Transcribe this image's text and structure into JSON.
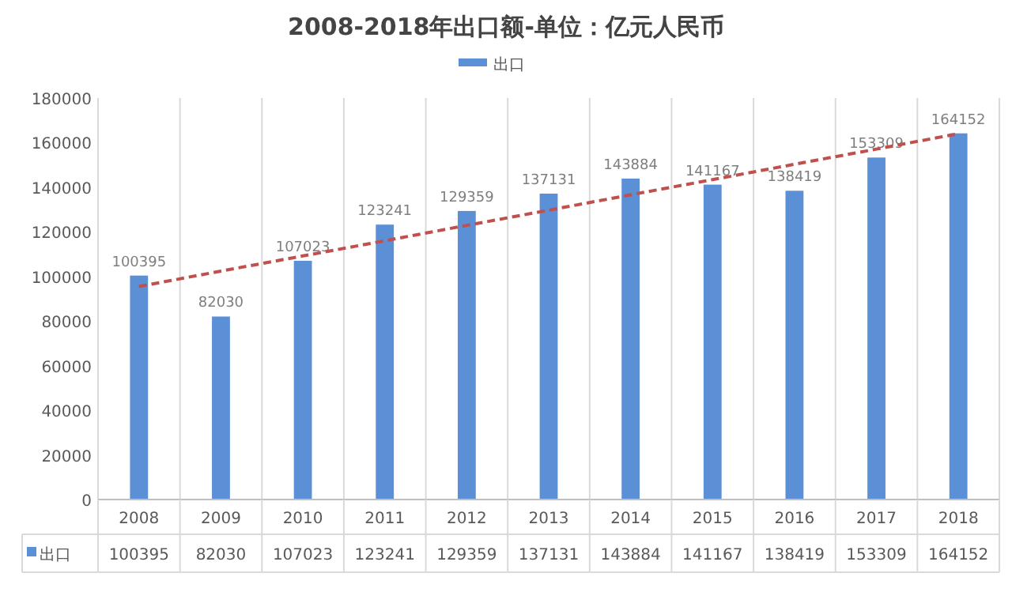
{
  "chart_data": {
    "type": "bar",
    "title": "2008-2018年出口额-单位：亿元人民币",
    "categories": [
      "2008",
      "2009",
      "2010",
      "2011",
      "2012",
      "2013",
      "2014",
      "2015",
      "2016",
      "2017",
      "2018"
    ],
    "series": [
      {
        "name": "出口",
        "color": "#5b8fd6",
        "values": [
          100395,
          82030,
          107023,
          123241,
          129359,
          137131,
          143884,
          141167,
          138419,
          153309,
          164152
        ],
        "value_labels": [
          "100395",
          "82030",
          "107023",
          "123241",
          "129359",
          "137131",
          "143884",
          "141167",
          "138419",
          "153309",
          "164152"
        ]
      },
      {
        "type": "line",
        "color": "#c0504d",
        "line_style": "dashed",
        "values": [
          95500,
          102400,
          109200,
          116000,
          122900,
          129700,
          136600,
          143400,
          150300,
          157100,
          164000
        ]
      }
    ],
    "ylim": [
      0,
      180000
    ],
    "yticks": [
      0,
      20000,
      40000,
      60000,
      80000,
      100000,
      120000,
      140000,
      160000,
      180000
    ],
    "grid": "x",
    "legend": "top"
  }
}
